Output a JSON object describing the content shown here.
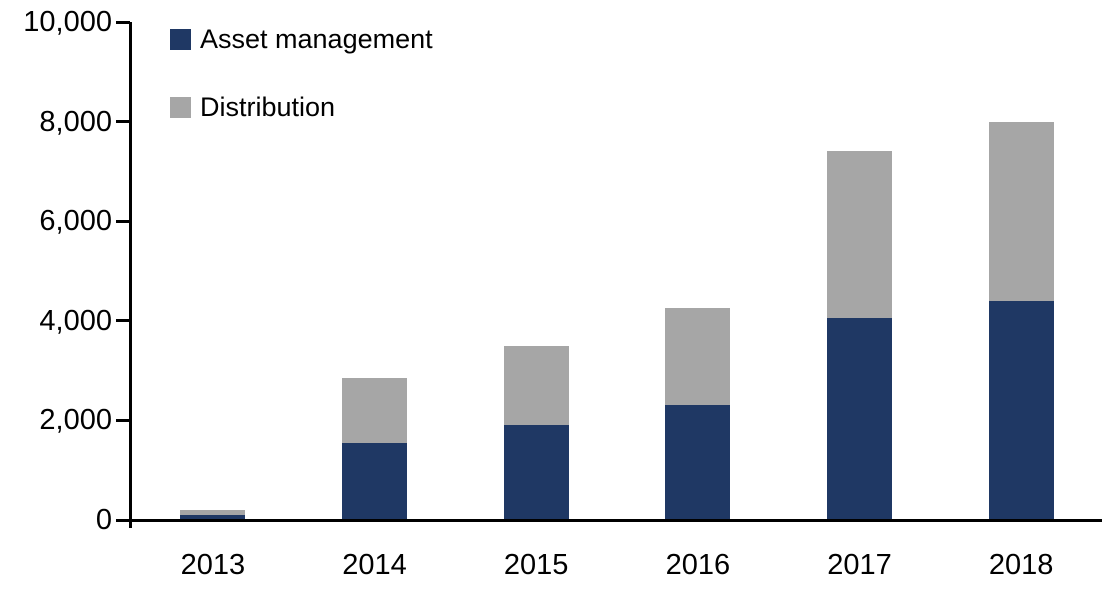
{
  "chart_data": {
    "type": "bar",
    "stacked": true,
    "title": "",
    "xlabel": "",
    "ylabel": "",
    "categories": [
      "2013",
      "2014",
      "2015",
      "2016",
      "2017",
      "2018"
    ],
    "series": [
      {
        "name": "Asset management",
        "color": "#1F3864",
        "values": [
          100,
          1550,
          1900,
          2300,
          4050,
          4400
        ]
      },
      {
        "name": "Distribution",
        "color": "#A6A6A6",
        "values": [
          100,
          1300,
          1600,
          1950,
          3350,
          3600
        ]
      }
    ],
    "ylim": [
      0,
      10000
    ],
    "ytick_step": 2000,
    "ytick_labels": [
      "0",
      "2,000",
      "4,000",
      "6,000",
      "8,000",
      "10,000"
    ],
    "grid": false,
    "legend_position": "top-left",
    "axis_color": "#000000",
    "background_color": "#FFFFFF"
  }
}
